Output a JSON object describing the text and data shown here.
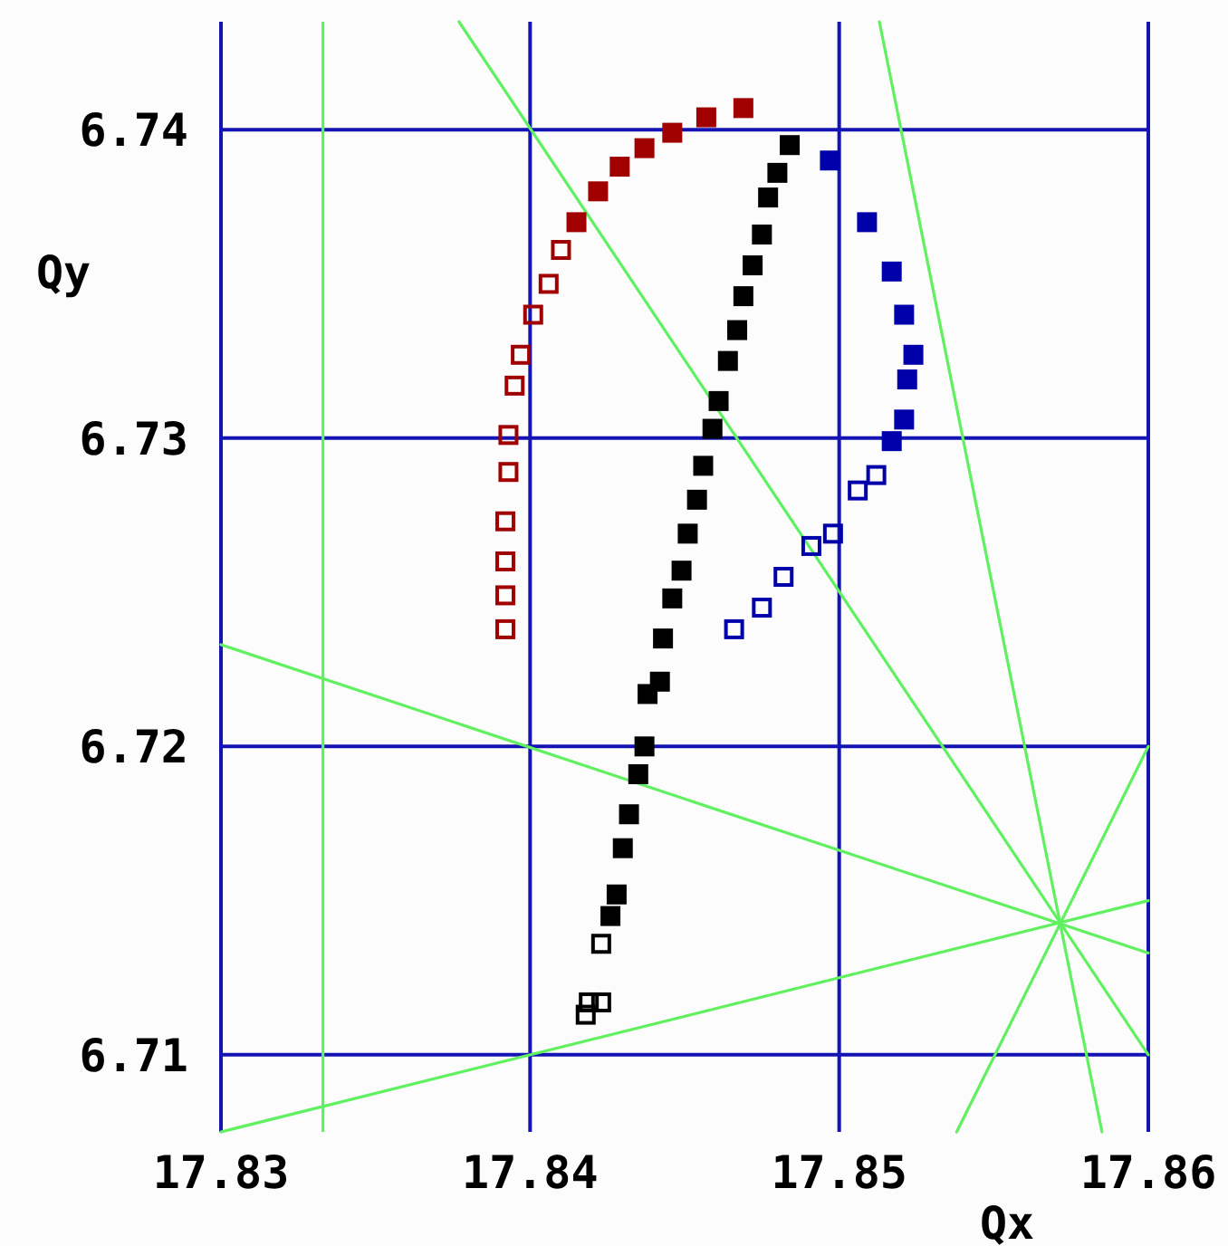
{
  "chart_data": {
    "type": "scatter",
    "xlabel": "Qx",
    "ylabel": "Qy",
    "xlim": [
      17.83,
      17.86
    ],
    "ylim": [
      6.7075,
      6.7435
    ],
    "xticks": [
      17.83,
      17.84,
      17.85,
      17.86
    ],
    "yticks": [
      6.71,
      6.72,
      6.73,
      6.74
    ],
    "grid": true,
    "marker": "square",
    "ref_lines": [
      {
        "axis": "x",
        "value": 17.8333,
        "color": "#60f060"
      }
    ],
    "series": [
      {
        "type": "line",
        "color": "#60f060",
        "marker": "none",
        "x": [
          17.8377,
          17.86
        ],
        "values": [
          6.7435,
          6.71
        ]
      },
      {
        "type": "line",
        "color": "#60f060",
        "marker": "none",
        "x": [
          17.8513,
          17.8585
        ],
        "values": [
          6.7435,
          6.7075
        ]
      },
      {
        "type": "line",
        "color": "#60f060",
        "marker": "none",
        "x": [
          17.83,
          17.86
        ],
        "values": [
          6.7233,
          6.7133
        ]
      },
      {
        "type": "line",
        "color": "#60f060",
        "marker": "none",
        "x": [
          17.83,
          17.86
        ],
        "values": [
          6.7075,
          6.715
        ]
      },
      {
        "type": "line",
        "color": "#60f060",
        "marker": "none",
        "x": [
          17.8538,
          17.86
        ],
        "values": [
          6.7075,
          6.72
        ]
      },
      {
        "type": "scatter",
        "color": "#a00000",
        "marker": "square-open",
        "x": [
          17.8392,
          17.8392,
          17.8392,
          17.8392,
          17.8393,
          17.8393,
          17.8395,
          17.8397,
          17.8401,
          17.8406,
          17.841
        ],
        "values": [
          6.7238,
          6.7249,
          6.726,
          6.7273,
          6.7289,
          6.7301,
          6.7317,
          6.7327,
          6.734,
          6.735,
          6.7361
        ]
      },
      {
        "type": "scatter",
        "color": "#a00000",
        "x": [
          17.8415,
          17.8422,
          17.8429,
          17.8437,
          17.8446,
          17.8457,
          17.8469
        ],
        "values": [
          6.737,
          6.738,
          6.7388,
          6.7394,
          6.7399,
          6.7404,
          6.7407
        ]
      },
      {
        "type": "scatter",
        "color": "#000000",
        "marker": "square-open",
        "x": [
          17.8418,
          17.8419,
          17.8423,
          17.8423
        ],
        "values": [
          6.7113,
          6.7117,
          6.7117,
          6.7136
        ]
      },
      {
        "type": "scatter",
        "color": "#000000",
        "x": [
          17.8426,
          17.8428,
          17.843,
          17.8432,
          17.8435,
          17.8437,
          17.8438,
          17.8442,
          17.8443,
          17.8446,
          17.8449,
          17.8451,
          17.8454,
          17.8456,
          17.8459,
          17.8461,
          17.8464,
          17.8467,
          17.8469,
          17.8472,
          17.8475,
          17.8477,
          17.848,
          17.8484
        ],
        "values": [
          6.7145,
          6.7152,
          6.7167,
          6.7178,
          6.7191,
          6.72,
          6.7217,
          6.7221,
          6.7235,
          6.7248,
          6.7257,
          6.7269,
          6.728,
          6.7291,
          6.7303,
          6.7312,
          6.7325,
          6.7335,
          6.7346,
          6.7356,
          6.7366,
          6.7378,
          6.7386,
          6.7395
        ]
      },
      {
        "type": "scatter",
        "color": "#0000aa",
        "x": [
          17.8497,
          17.8509,
          17.8517,
          17.8521,
          17.8524,
          17.8522,
          17.8521,
          17.8517
        ],
        "values": [
          6.739,
          6.737,
          6.7354,
          6.734,
          6.7327,
          6.7319,
          6.7306,
          6.7299
        ]
      },
      {
        "type": "scatter",
        "color": "#0000aa",
        "marker": "square-open",
        "x": [
          17.8512,
          17.8506,
          17.8498,
          17.8491,
          17.8482,
          17.8475,
          17.8466
        ],
        "values": [
          6.7288,
          6.7283,
          6.7269,
          6.7265,
          6.7255,
          6.7245,
          6.7238
        ]
      }
    ]
  }
}
